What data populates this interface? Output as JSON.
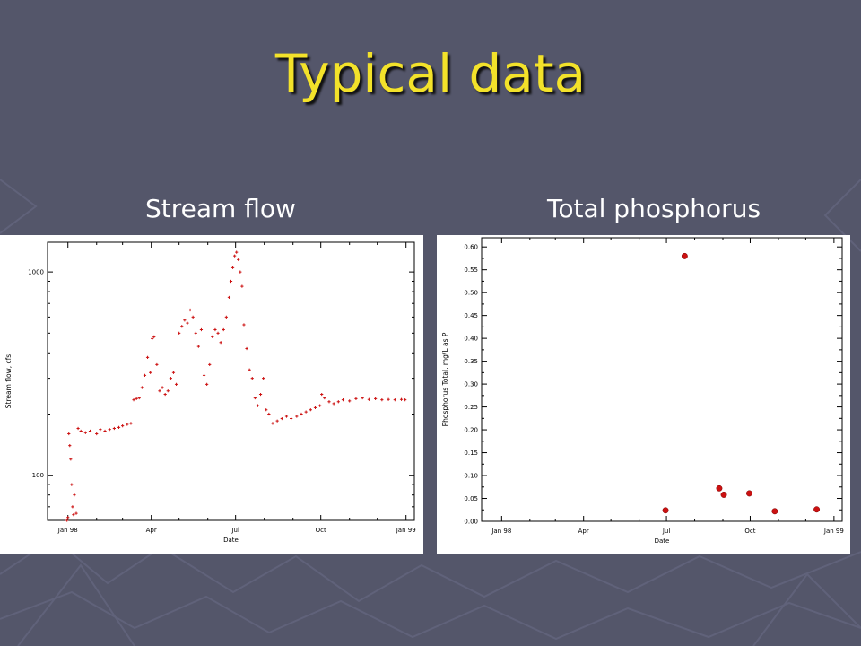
{
  "slide": {
    "title": "Typical data"
  },
  "labels": {
    "left": "Stream flow",
    "right": "Total phosphorus"
  },
  "colors": {
    "background": "#54566a",
    "title": "#f3e22a",
    "marker": "#cc1111"
  },
  "chart_data": [
    {
      "type": "scatter",
      "ylabel": "Stream flow, cfs",
      "xlabel": "Date",
      "yscale": "log",
      "ylim": [
        60,
        1400
      ],
      "xlim": [
        "1997-12-10",
        "1999-01-10"
      ],
      "xticks": [
        {
          "date": "1998-01-01",
          "label": "Jan 98"
        },
        {
          "date": "1998-04-01",
          "label": "Apr"
        },
        {
          "date": "1998-07-01",
          "label": "Jul"
        },
        {
          "date": "1998-10-01",
          "label": "Oct"
        },
        {
          "date": "1999-01-01",
          "label": "Jan 99"
        }
      ],
      "yticks": [
        {
          "value": 100,
          "label": "100"
        },
        {
          "value": 1000,
          "label": "1000"
        }
      ],
      "grid": false,
      "series": [
        {
          "x": [
            "1997-12-31",
            "1998-01-01",
            "1998-01-02",
            "1998-01-03",
            "1998-01-04",
            "1998-01-05",
            "1998-01-06",
            "1998-01-07",
            "1998-01-08",
            "1998-01-10",
            "1998-01-12",
            "1998-01-15",
            "1998-01-20",
            "1998-01-25",
            "1998-02-01",
            "1998-02-05",
            "1998-02-10",
            "1998-02-15",
            "1998-02-20",
            "1998-02-25",
            "1998-03-01",
            "1998-03-06",
            "1998-03-10",
            "1998-03-13",
            "1998-03-16",
            "1998-03-19",
            "1998-03-22",
            "1998-03-25",
            "1998-03-28",
            "1998-03-31",
            "1998-04-02",
            "1998-04-04",
            "1998-04-07",
            "1998-04-10",
            "1998-04-13",
            "1998-04-16",
            "1998-04-19",
            "1998-04-22",
            "1998-04-25",
            "1998-04-28",
            "1998-05-01",
            "1998-05-04",
            "1998-05-07",
            "1998-05-10",
            "1998-05-13",
            "1998-05-16",
            "1998-05-19",
            "1998-05-22",
            "1998-05-25",
            "1998-05-28",
            "1998-05-31",
            "1998-06-03",
            "1998-06-06",
            "1998-06-09",
            "1998-06-12",
            "1998-06-15",
            "1998-06-18",
            "1998-06-21",
            "1998-06-24",
            "1998-06-26",
            "1998-06-28",
            "1998-06-30",
            "1998-07-02",
            "1998-07-04",
            "1998-07-06",
            "1998-07-08",
            "1998-07-10",
            "1998-07-13",
            "1998-07-16",
            "1998-07-19",
            "1998-07-22",
            "1998-07-25",
            "1998-07-28",
            "1998-07-31",
            "1998-08-03",
            "1998-08-06",
            "1998-08-10",
            "1998-08-15",
            "1998-08-20",
            "1998-08-25",
            "1998-08-30",
            "1998-09-05",
            "1998-09-10",
            "1998-09-15",
            "1998-09-20",
            "1998-09-25",
            "1998-09-30",
            "1998-10-02",
            "1998-10-05",
            "1998-10-10",
            "1998-10-15",
            "1998-10-20",
            "1998-10-25",
            "1998-11-01",
            "1998-11-08",
            "1998-11-15",
            "1998-11-22",
            "1998-11-29",
            "1998-12-06",
            "1998-12-13",
            "1998-12-20",
            "1998-12-27",
            "1998-12-31"
          ],
          "y": [
            60,
            62,
            160,
            140,
            120,
            90,
            70,
            64,
            80,
            65,
            170,
            165,
            162,
            165,
            160,
            168,
            165,
            168,
            170,
            172,
            175,
            178,
            180,
            235,
            238,
            240,
            270,
            310,
            380,
            320,
            470,
            480,
            350,
            260,
            270,
            250,
            260,
            300,
            320,
            280,
            500,
            540,
            580,
            560,
            650,
            600,
            500,
            430,
            520,
            310,
            280,
            350,
            480,
            520,
            500,
            450,
            520,
            600,
            750,
            900,
            1050,
            1200,
            1250,
            1150,
            1000,
            850,
            550,
            420,
            330,
            300,
            240,
            220,
            250,
            300,
            210,
            200,
            180,
            185,
            190,
            195,
            190,
            195,
            200,
            205,
            210,
            215,
            220,
            250,
            240,
            230,
            225,
            230,
            235,
            232,
            238,
            240,
            236,
            238,
            235,
            236,
            235,
            236,
            235
          ]
        }
      ]
    },
    {
      "type": "scatter",
      "ylabel": "Phosphorus Total, mg/L as P",
      "xlabel": "Date",
      "ylim": [
        0,
        0.62
      ],
      "xlim": [
        "1997-12-10",
        "1999-01-10"
      ],
      "xticks": [
        {
          "date": "1998-01-01",
          "label": "Jan 98"
        },
        {
          "date": "1998-04-01",
          "label": "Apr"
        },
        {
          "date": "1998-07-01",
          "label": "Jul"
        },
        {
          "date": "1998-10-01",
          "label": "Oct"
        },
        {
          "date": "1999-01-01",
          "label": "Jan 99"
        }
      ],
      "yticks": [
        {
          "value": 0,
          "label": "0.00"
        },
        {
          "value": 0.05,
          "label": "0.05"
        },
        {
          "value": 0.1,
          "label": "0.10"
        },
        {
          "value": 0.15,
          "label": "0.15"
        },
        {
          "value": 0.2,
          "label": "0.20"
        },
        {
          "value": 0.25,
          "label": "0.25"
        },
        {
          "value": 0.3,
          "label": "0.30"
        },
        {
          "value": 0.35,
          "label": "0.35"
        },
        {
          "value": 0.4,
          "label": "0.40"
        },
        {
          "value": 0.45,
          "label": "0.45"
        },
        {
          "value": 0.5,
          "label": "0.50"
        },
        {
          "value": 0.55,
          "label": "0.55"
        },
        {
          "value": 0.6,
          "label": "0.60"
        }
      ],
      "grid": false,
      "series": [
        {
          "x": [
            "1998-06-30",
            "1998-07-21",
            "1998-08-28",
            "1998-09-02",
            "1998-09-30",
            "1998-10-28",
            "1998-12-13"
          ],
          "y": [
            0.024,
            0.58,
            0.072,
            0.058,
            0.061,
            0.022,
            0.026
          ]
        }
      ]
    }
  ]
}
